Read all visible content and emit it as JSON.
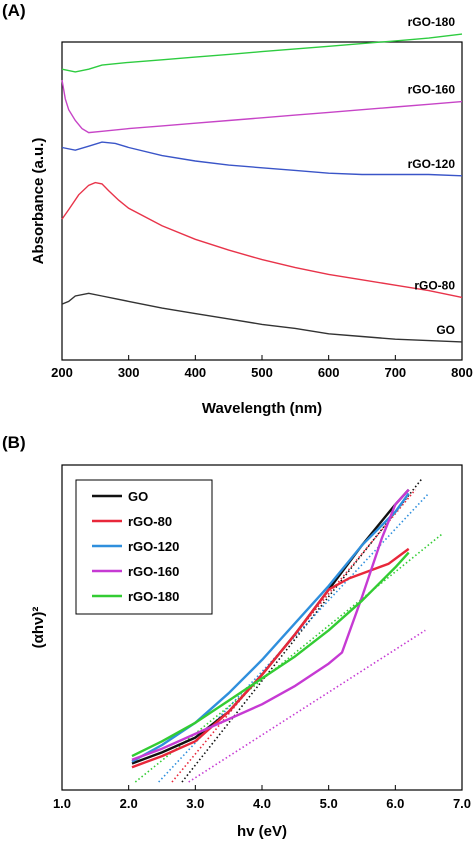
{
  "panels": [
    {
      "tag": "(A)"
    },
    {
      "tag": "(B)"
    }
  ],
  "chart_data": [
    {
      "type": "line",
      "title": "",
      "xlabel": "Wavelength (nm)",
      "ylabel": "Absorbance (a.u.)",
      "xlim": [
        200,
        800
      ],
      "ylim": [
        0,
        10
      ],
      "xticks": [
        200,
        300,
        400,
        500,
        600,
        700,
        800
      ],
      "yticks_shown": false,
      "legend": "labels at right end of each curve",
      "series": [
        {
          "name": "GO",
          "color": "#333333",
          "x": [
            200,
            210,
            220,
            240,
            260,
            280,
            300,
            350,
            400,
            450,
            500,
            550,
            600,
            650,
            700,
            750,
            800
          ],
          "y": [
            1.7,
            1.8,
            2.0,
            2.1,
            2.0,
            1.9,
            1.8,
            1.55,
            1.35,
            1.15,
            0.95,
            0.8,
            0.6,
            0.5,
            0.4,
            0.35,
            0.3
          ]
        },
        {
          "name": "rGO-80",
          "color": "#e8344a",
          "x": [
            200,
            210,
            225,
            240,
            250,
            260,
            270,
            285,
            300,
            350,
            400,
            450,
            500,
            550,
            600,
            650,
            700,
            750,
            800
          ],
          "y": [
            4.85,
            5.2,
            5.75,
            6.1,
            6.2,
            6.15,
            5.9,
            5.55,
            5.25,
            4.6,
            4.1,
            3.7,
            3.35,
            3.05,
            2.8,
            2.6,
            2.4,
            2.2,
            1.95
          ]
        },
        {
          "name": "rGO-120",
          "color": "#3a55c8",
          "x": [
            200,
            220,
            240,
            260,
            280,
            300,
            350,
            400,
            450,
            500,
            550,
            600,
            650,
            700,
            750,
            800
          ],
          "y": [
            7.5,
            7.4,
            7.55,
            7.7,
            7.65,
            7.5,
            7.2,
            7.0,
            6.85,
            6.75,
            6.65,
            6.55,
            6.5,
            6.5,
            6.5,
            6.45
          ]
        },
        {
          "name": "rGO-160",
          "color": "#c745c7",
          "x": [
            200,
            205,
            210,
            220,
            230,
            240,
            260,
            300,
            350,
            400,
            450,
            500,
            550,
            600,
            650,
            700,
            750,
            800
          ],
          "y": [
            10.0,
            9.3,
            8.9,
            8.5,
            8.2,
            8.05,
            8.1,
            8.2,
            8.3,
            8.4,
            8.5,
            8.6,
            8.7,
            8.8,
            8.9,
            9.0,
            9.1,
            9.2
          ]
        },
        {
          "name": "rGO-180",
          "color": "#2ecc40",
          "x": [
            200,
            220,
            240,
            260,
            300,
            350,
            400,
            450,
            500,
            550,
            600,
            650,
            700,
            750,
            800
          ],
          "y": [
            10.4,
            10.3,
            10.4,
            10.55,
            10.65,
            10.75,
            10.85,
            10.95,
            11.05,
            11.15,
            11.25,
            11.35,
            11.45,
            11.55,
            11.7
          ]
        }
      ]
    },
    {
      "type": "line",
      "title": "",
      "xlabel": "hv (eV)",
      "ylabel": "(αhν)²",
      "xlim": [
        1.0,
        7.0
      ],
      "ylim": [
        0,
        10
      ],
      "xticks": [
        "1.0",
        "2.0",
        "3.0",
        "4.0",
        "5.0",
        "6.0",
        "7.0"
      ],
      "yticks_shown": false,
      "legend": "top-left",
      "series": [
        {
          "name": "GO",
          "color": "#111111",
          "x": [
            2.05,
            2.5,
            3.0,
            3.5,
            4.0,
            4.5,
            5.0,
            5.5,
            6.0,
            6.2
          ],
          "y": [
            0.5,
            0.8,
            1.2,
            1.9,
            2.9,
            4.0,
            5.2,
            6.4,
            7.5,
            7.9
          ]
        },
        {
          "name": "rGO-80",
          "color": "#e8273a",
          "x": [
            2.05,
            2.5,
            3.0,
            3.5,
            4.0,
            4.5,
            5.0,
            5.3,
            5.6,
            5.9,
            6.2
          ],
          "y": [
            0.4,
            0.7,
            1.1,
            1.9,
            2.9,
            4.0,
            5.2,
            5.5,
            5.7,
            5.9,
            6.3
          ]
        },
        {
          "name": "rGO-120",
          "color": "#2f8fdd",
          "x": [
            2.05,
            2.5,
            3.0,
            3.5,
            4.0,
            4.5,
            5.0,
            5.5,
            6.0,
            6.2
          ],
          "y": [
            0.55,
            1.0,
            1.6,
            2.4,
            3.3,
            4.3,
            5.3,
            6.4,
            7.3,
            7.8
          ]
        },
        {
          "name": "rGO-160",
          "color": "#c63ad3",
          "x": [
            2.05,
            2.5,
            3.0,
            3.5,
            4.0,
            4.5,
            5.0,
            5.2,
            5.5,
            5.8,
            6.0,
            6.2
          ],
          "y": [
            0.6,
            0.9,
            1.3,
            1.7,
            2.1,
            2.6,
            3.2,
            3.5,
            5.0,
            6.6,
            7.5,
            7.9
          ]
        },
        {
          "name": "rGO-180",
          "color": "#33cc33",
          "x": [
            2.05,
            2.5,
            3.0,
            3.5,
            4.0,
            4.5,
            5.0,
            5.5,
            6.0,
            6.2
          ],
          "y": [
            0.7,
            1.1,
            1.6,
            2.2,
            2.8,
            3.4,
            4.1,
            4.9,
            5.8,
            6.2
          ]
        }
      ],
      "tangent_lines": [
        {
          "series": "GO",
          "style": "dotted",
          "color": "#111111",
          "x": [
            2.8,
            6.4
          ],
          "y": [
            0.0,
            8.2
          ]
        },
        {
          "series": "rGO-80",
          "style": "dotted",
          "color": "#e8273a",
          "x": [
            2.65,
            6.3
          ],
          "y": [
            0.0,
            7.9
          ]
        },
        {
          "series": "rGO-120",
          "style": "dotted",
          "color": "#2f8fdd",
          "x": [
            2.45,
            6.5
          ],
          "y": [
            0.0,
            7.8
          ]
        },
        {
          "series": "rGO-160",
          "style": "dotted",
          "color": "#c63ad3",
          "x": [
            2.9,
            6.45
          ],
          "y": [
            0.0,
            4.1
          ]
        },
        {
          "series": "rGO-180",
          "style": "dotted",
          "color": "#33cc33",
          "x": [
            2.1,
            6.7
          ],
          "y": [
            0.0,
            6.7
          ]
        }
      ]
    }
  ]
}
